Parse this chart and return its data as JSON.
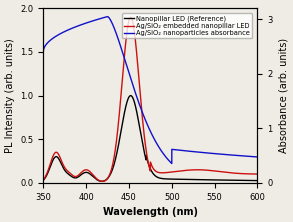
{
  "xlabel": "Wavelength (nm)",
  "ylabel_left": "PL Intensity (arb. units)",
  "ylabel_right": "Absorbance (arb. units)",
  "xlim": [
    350,
    600
  ],
  "ylim_left": [
    0,
    2.0
  ],
  "ylim_right": [
    0,
    3.2
  ],
  "yticks_left": [
    0.0,
    0.5,
    1.0,
    1.5,
    2.0
  ],
  "yticks_right": [
    0,
    1,
    2,
    3
  ],
  "xticks": [
    350,
    400,
    450,
    500,
    550,
    600
  ],
  "legend_labels": [
    "Nanopillar LED (Reference)",
    "Ag/SiO₂ embedded nanopillar LED",
    "Ag/SiO₂ nanoparticles absorbance"
  ],
  "legend_colors": [
    "black",
    "#cc1111",
    "#1111cc"
  ],
  "background_color": "#eeece4",
  "axis_fontsize": 7,
  "legend_fontsize": 4.8,
  "tick_fontsize": 6
}
